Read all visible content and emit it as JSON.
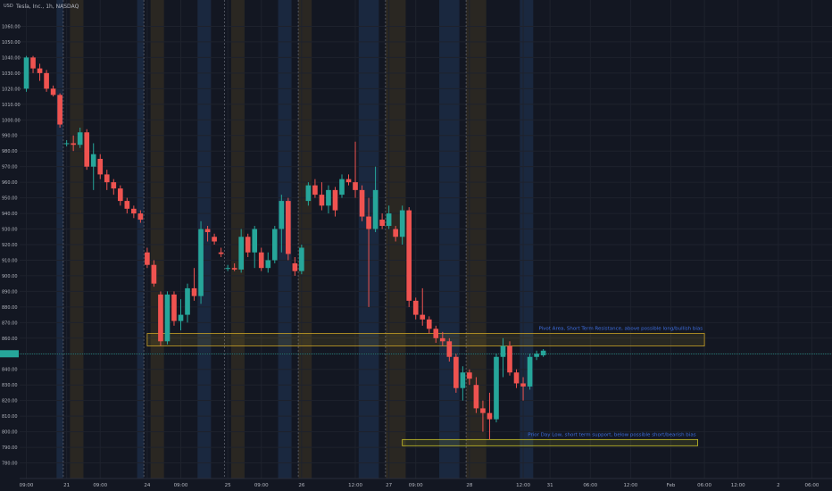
{
  "header": {
    "symbol_line": "Tesla, Inc., 1h, NASDAQ",
    "currency": "USD"
  },
  "colors": {
    "background": "#131722",
    "up": "#26a69a",
    "down": "#ef5350",
    "grid": "#1e222d",
    "axis_text": "#b2b5be",
    "resistance_zone": "#c9a227",
    "support_zone": "#c9c227",
    "annotation_text": "#3d6ee0",
    "price_line": "#26a69a",
    "session_blue": "#1c2b44",
    "session_orange": "#2f2a22"
  },
  "chart_data": {
    "type": "candlestick",
    "title": "",
    "xlabel": "",
    "ylabel": "",
    "ylim": [
      770,
      1070
    ],
    "y_ticks": [
      780,
      790,
      800,
      810,
      820,
      830,
      840,
      850,
      860,
      870,
      880,
      890,
      900,
      910,
      920,
      930,
      940,
      950,
      960,
      970,
      980,
      990,
      1000,
      1010,
      1020,
      1030,
      1040,
      1050,
      1060
    ],
    "y_tick_labels": [
      "780.00",
      "790.00",
      "800.00",
      "810.00",
      "820.00",
      "830.00",
      "840.00",
      "850.00",
      "860.00",
      "870.00",
      "880.00",
      "890.00",
      "900.00",
      "910.00",
      "920.00",
      "930.00",
      "940.00",
      "950.00",
      "960.00",
      "970.00",
      "980.00",
      "990.00",
      "1000.00",
      "1010.00",
      "1020.00",
      "1030.00",
      "1040.00",
      "1050.00",
      "1060.00"
    ],
    "x_range": [
      0,
      121
    ],
    "x_ticks": [
      {
        "x": 1,
        "label": "09:00"
      },
      {
        "x": 7,
        "label": "21"
      },
      {
        "x": 12,
        "label": "09:00"
      },
      {
        "x": 19,
        "label": "24"
      },
      {
        "x": 24,
        "label": "09:00"
      },
      {
        "x": 31,
        "label": "25"
      },
      {
        "x": 36,
        "label": "09:00"
      },
      {
        "x": 42,
        "label": "26"
      },
      {
        "x": 50,
        "label": "12:00"
      },
      {
        "x": 55,
        "label": "27"
      },
      {
        "x": 59,
        "label": "09:00"
      },
      {
        "x": 67,
        "label": "28"
      },
      {
        "x": 75,
        "label": "12:00"
      },
      {
        "x": 79,
        "label": "31"
      },
      {
        "x": 85,
        "label": "06:00"
      },
      {
        "x": 91,
        "label": "12:00"
      },
      {
        "x": 97,
        "label": "Feb"
      },
      {
        "x": 102,
        "label": "06:00"
      },
      {
        "x": 107,
        "label": "12:00"
      },
      {
        "x": 113,
        "label": "2"
      },
      {
        "x": 118,
        "label": "06:00"
      }
    ],
    "day_separators": [
      7,
      19,
      31,
      42,
      55,
      67
    ],
    "session_bands": [
      {
        "start": 6,
        "end": 7,
        "kind": "blue"
      },
      {
        "start": 8,
        "end": 10,
        "kind": "orange"
      },
      {
        "start": 18,
        "end": 19,
        "kind": "blue"
      },
      {
        "start": 20,
        "end": 22,
        "kind": "orange"
      },
      {
        "start": 27,
        "end": 29,
        "kind": "blue"
      },
      {
        "start": 32,
        "end": 34,
        "kind": "orange"
      },
      {
        "start": 39,
        "end": 41,
        "kind": "blue"
      },
      {
        "start": 42,
        "end": 44,
        "kind": "orange"
      },
      {
        "start": 51,
        "end": 54,
        "kind": "blue"
      },
      {
        "start": 55,
        "end": 58,
        "kind": "orange"
      },
      {
        "start": 63,
        "end": 66,
        "kind": "blue"
      },
      {
        "start": 67,
        "end": 70,
        "kind": "orange"
      },
      {
        "start": 75,
        "end": 77,
        "kind": "blue"
      }
    ],
    "candles": [
      {
        "x": 1,
        "o": 1020,
        "h": 1041,
        "l": 1018,
        "c": 1040
      },
      {
        "x": 2,
        "o": 1040,
        "h": 1041,
        "l": 1030,
        "c": 1033
      },
      {
        "x": 3,
        "o": 1033,
        "h": 1036,
        "l": 1025,
        "c": 1030
      },
      {
        "x": 4,
        "o": 1030,
        "h": 1032,
        "l": 1018,
        "c": 1020
      },
      {
        "x": 5,
        "o": 1020,
        "h": 1022,
        "l": 1015,
        "c": 1016
      },
      {
        "x": 6,
        "o": 1016,
        "h": 1017,
        "l": 995,
        "c": 997
      },
      {
        "x": 7,
        "o": 985,
        "h": 987,
        "l": 983,
        "c": 985
      },
      {
        "x": 8,
        "o": 985,
        "h": 990,
        "l": 980,
        "c": 984
      },
      {
        "x": 9,
        "o": 984,
        "h": 995,
        "l": 982,
        "c": 992
      },
      {
        "x": 10,
        "o": 992,
        "h": 994,
        "l": 968,
        "c": 970
      },
      {
        "x": 11,
        "o": 970,
        "h": 985,
        "l": 955,
        "c": 978
      },
      {
        "x": 12,
        "o": 975,
        "h": 978,
        "l": 962,
        "c": 965
      },
      {
        "x": 13,
        "o": 965,
        "h": 968,
        "l": 955,
        "c": 960
      },
      {
        "x": 14,
        "o": 960,
        "h": 962,
        "l": 952,
        "c": 956
      },
      {
        "x": 15,
        "o": 956,
        "h": 958,
        "l": 945,
        "c": 948
      },
      {
        "x": 16,
        "o": 948,
        "h": 950,
        "l": 940,
        "c": 943
      },
      {
        "x": 17,
        "o": 943,
        "h": 945,
        "l": 937,
        "c": 940
      },
      {
        "x": 18,
        "o": 940,
        "h": 942,
        "l": 934,
        "c": 936
      },
      {
        "x": 19,
        "o": 915,
        "h": 918,
        "l": 905,
        "c": 907
      },
      {
        "x": 20,
        "o": 907,
        "h": 910,
        "l": 893,
        "c": 895
      },
      {
        "x": 21,
        "o": 888,
        "h": 890,
        "l": 855,
        "c": 858
      },
      {
        "x": 22,
        "o": 858,
        "h": 890,
        "l": 856,
        "c": 888
      },
      {
        "x": 23,
        "o": 888,
        "h": 890,
        "l": 868,
        "c": 871
      },
      {
        "x": 24,
        "o": 871,
        "h": 885,
        "l": 865,
        "c": 875
      },
      {
        "x": 25,
        "o": 875,
        "h": 895,
        "l": 870,
        "c": 892
      },
      {
        "x": 26,
        "o": 892,
        "h": 905,
        "l": 884,
        "c": 887
      },
      {
        "x": 27,
        "o": 887,
        "h": 935,
        "l": 882,
        "c": 930
      },
      {
        "x": 28,
        "o": 930,
        "h": 932,
        "l": 922,
        "c": 928
      },
      {
        "x": 29,
        "o": 925,
        "h": 927,
        "l": 920,
        "c": 922
      },
      {
        "x": 30,
        "o": 915,
        "h": 918,
        "l": 912,
        "c": 914
      },
      {
        "x": 31,
        "o": 905,
        "h": 907,
        "l": 903,
        "c": 905
      },
      {
        "x": 32,
        "o": 905,
        "h": 908,
        "l": 903,
        "c": 904
      },
      {
        "x": 33,
        "o": 904,
        "h": 930,
        "l": 902,
        "c": 925
      },
      {
        "x": 34,
        "o": 925,
        "h": 927,
        "l": 912,
        "c": 915
      },
      {
        "x": 35,
        "o": 915,
        "h": 932,
        "l": 905,
        "c": 930
      },
      {
        "x": 36,
        "o": 915,
        "h": 918,
        "l": 903,
        "c": 905
      },
      {
        "x": 37,
        "o": 905,
        "h": 915,
        "l": 902,
        "c": 910
      },
      {
        "x": 38,
        "o": 910,
        "h": 932,
        "l": 908,
        "c": 930
      },
      {
        "x": 39,
        "o": 930,
        "h": 952,
        "l": 915,
        "c": 948
      },
      {
        "x": 40,
        "o": 948,
        "h": 950,
        "l": 910,
        "c": 914
      },
      {
        "x": 41,
        "o": 908,
        "h": 912,
        "l": 900,
        "c": 903
      },
      {
        "x": 42,
        "o": 903,
        "h": 920,
        "l": 901,
        "c": 918
      },
      {
        "x": 43,
        "o": 948,
        "h": 960,
        "l": 945,
        "c": 958
      },
      {
        "x": 44,
        "o": 958,
        "h": 962,
        "l": 950,
        "c": 952
      },
      {
        "x": 45,
        "o": 952,
        "h": 960,
        "l": 942,
        "c": 945
      },
      {
        "x": 46,
        "o": 945,
        "h": 958,
        "l": 940,
        "c": 955
      },
      {
        "x": 47,
        "o": 955,
        "h": 957,
        "l": 938,
        "c": 942
      },
      {
        "x": 48,
        "o": 952,
        "h": 965,
        "l": 950,
        "c": 962
      },
      {
        "x": 49,
        "o": 962,
        "h": 965,
        "l": 958,
        "c": 960
      },
      {
        "x": 50,
        "o": 960,
        "h": 986,
        "l": 950,
        "c": 955
      },
      {
        "x": 51,
        "o": 955,
        "h": 958,
        "l": 935,
        "c": 938
      },
      {
        "x": 52,
        "o": 938,
        "h": 950,
        "l": 880,
        "c": 930
      },
      {
        "x": 53,
        "o": 930,
        "h": 970,
        "l": 928,
        "c": 955
      },
      {
        "x": 54,
        "o": 936,
        "h": 940,
        "l": 930,
        "c": 932
      },
      {
        "x": 55,
        "o": 932,
        "h": 945,
        "l": 930,
        "c": 940
      },
      {
        "x": 56,
        "o": 930,
        "h": 932,
        "l": 922,
        "c": 925
      },
      {
        "x": 57,
        "o": 925,
        "h": 945,
        "l": 920,
        "c": 942
      },
      {
        "x": 58,
        "o": 942,
        "h": 944,
        "l": 880,
        "c": 884
      },
      {
        "x": 59,
        "o": 884,
        "h": 886,
        "l": 872,
        "c": 875
      },
      {
        "x": 60,
        "o": 875,
        "h": 892,
        "l": 868,
        "c": 872
      },
      {
        "x": 61,
        "o": 872,
        "h": 874,
        "l": 863,
        "c": 866
      },
      {
        "x": 62,
        "o": 866,
        "h": 868,
        "l": 857,
        "c": 860
      },
      {
        "x": 63,
        "o": 860,
        "h": 864,
        "l": 855,
        "c": 858
      },
      {
        "x": 64,
        "o": 858,
        "h": 860,
        "l": 845,
        "c": 848
      },
      {
        "x": 65,
        "o": 848,
        "h": 850,
        "l": 825,
        "c": 828
      },
      {
        "x": 66,
        "o": 828,
        "h": 842,
        "l": 820,
        "c": 838
      },
      {
        "x": 67,
        "o": 838,
        "h": 840,
        "l": 830,
        "c": 834
      },
      {
        "x": 68,
        "o": 830,
        "h": 835,
        "l": 812,
        "c": 815
      },
      {
        "x": 69,
        "o": 815,
        "h": 820,
        "l": 800,
        "c": 812
      },
      {
        "x": 70,
        "o": 812,
        "h": 825,
        "l": 795,
        "c": 808
      },
      {
        "x": 71,
        "o": 808,
        "h": 850,
        "l": 806,
        "c": 848
      },
      {
        "x": 72,
        "o": 848,
        "h": 860,
        "l": 835,
        "c": 855
      },
      {
        "x": 73,
        "o": 855,
        "h": 858,
        "l": 836,
        "c": 838
      },
      {
        "x": 74,
        "o": 838,
        "h": 840,
        "l": 828,
        "c": 831
      },
      {
        "x": 75,
        "o": 831,
        "h": 835,
        "l": 820,
        "c": 829
      },
      {
        "x": 76,
        "o": 829,
        "h": 850,
        "l": 827,
        "c": 848
      },
      {
        "x": 77,
        "o": 848,
        "h": 852,
        "l": 846,
        "c": 850
      },
      {
        "x": 78,
        "o": 849,
        "h": 853,
        "l": 848,
        "c": 852
      }
    ],
    "zones": [
      {
        "name": "resistance",
        "x_start": 19,
        "x_end": 102,
        "y_low": 855,
        "y_high": 863,
        "label": "Pivot Area, Short Term Resistance, above possible long/bullish bias"
      },
      {
        "name": "support",
        "x_start": 57,
        "x_end": 101,
        "y_low": 791,
        "y_high": 795,
        "label": "Prior Day Low, short term support, below possible short/bearish bias"
      }
    ],
    "current_price": 850
  }
}
